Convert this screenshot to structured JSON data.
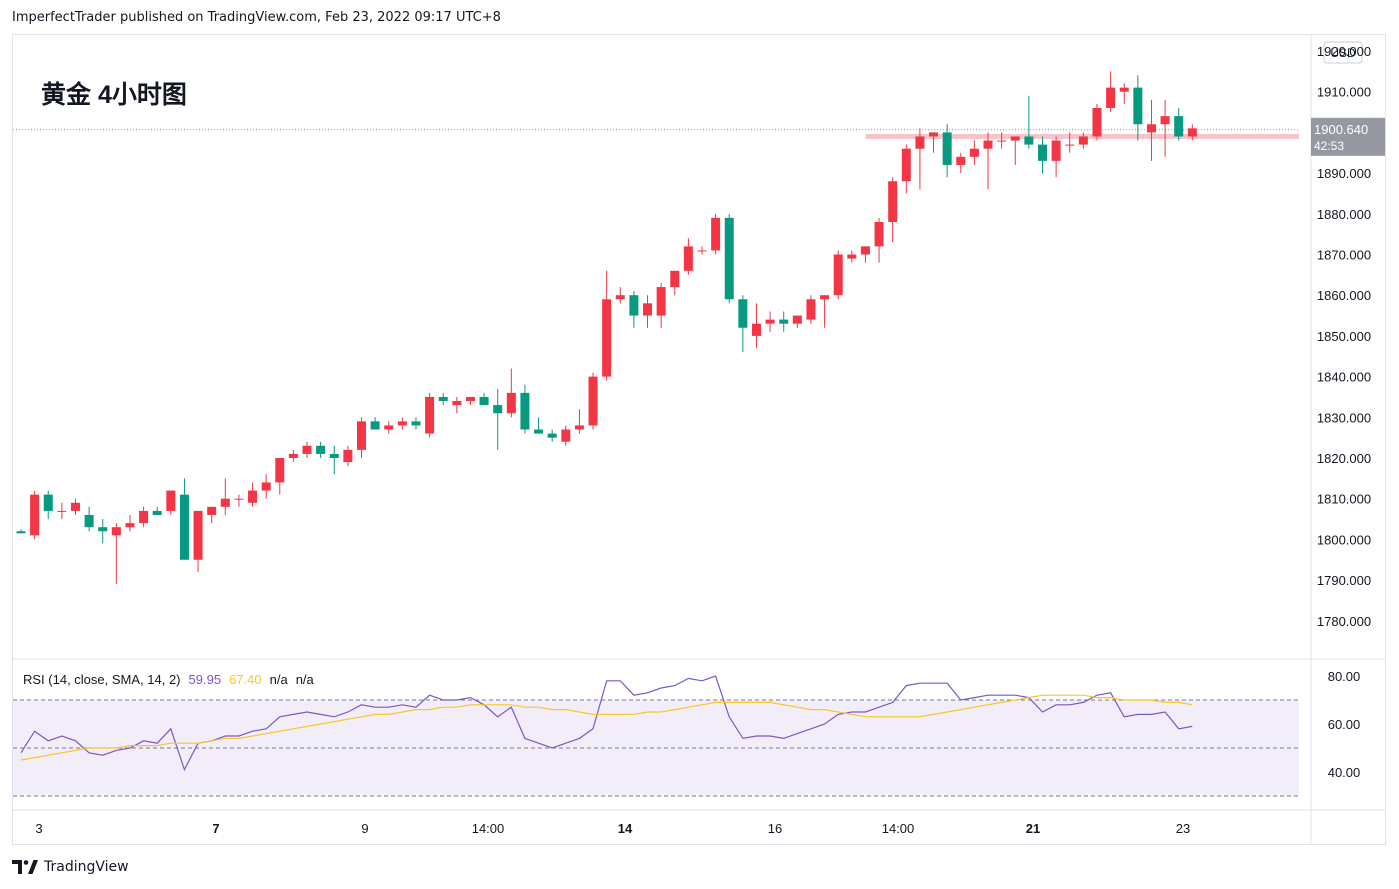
{
  "header": {
    "published": "ImperfectTrader published on TradingView.com, Feb 23, 2022 09:17 UTC+8"
  },
  "footer": {
    "brand": "TradingView"
  },
  "chart_data": [
    {
      "type": "candlestick",
      "title": "黄金 4小时图",
      "currency": "USD",
      "ylim": [
        1775,
        1925
      ],
      "y_ticks": [
        "1920.000",
        "1910.000",
        "1890.000",
        "1880.000",
        "1870.000",
        "1860.000",
        "1850.000",
        "1840.000",
        "1830.000",
        "1820.000",
        "1810.000",
        "1800.000",
        "1790.000",
        "1780.000"
      ],
      "last_price": "1900.640",
      "countdown": "42:53",
      "last_price_value": 1900.64,
      "horizontal_line": 1899,
      "x_ticks": [
        {
          "label": "3",
          "bold": false
        },
        {
          "label": "7",
          "bold": true
        },
        {
          "label": "9",
          "bold": false
        },
        {
          "label": "14:00",
          "bold": false
        },
        {
          "label": "14",
          "bold": true
        },
        {
          "label": "16",
          "bold": false
        },
        {
          "label": "14:00",
          "bold": false
        },
        {
          "label": "21",
          "bold": true
        },
        {
          "label": "23",
          "bold": false
        }
      ],
      "candles": [
        [
          1802,
          1802.5,
          1801.5,
          1801.5
        ],
        [
          1801,
          1812,
          1800,
          1811
        ],
        [
          1811,
          1812,
          1805,
          1807
        ],
        [
          1807,
          1809,
          1805,
          1807
        ],
        [
          1807,
          1810,
          1806,
          1809
        ],
        [
          1806,
          1808,
          1802,
          1803
        ],
        [
          1803,
          1805,
          1799,
          1802
        ],
        [
          1801,
          1804,
          1789,
          1803
        ],
        [
          1803,
          1806,
          1802,
          1804
        ],
        [
          1804,
          1808,
          1803,
          1807
        ],
        [
          1807,
          1808,
          1806,
          1806
        ],
        [
          1807,
          1812,
          1806,
          1812
        ],
        [
          1811,
          1815,
          1795,
          1795
        ],
        [
          1795,
          1807,
          1792,
          1807
        ],
        [
          1806,
          1808,
          1804,
          1808
        ],
        [
          1808,
          1815,
          1806,
          1810
        ],
        [
          1810,
          1811,
          1808,
          1810
        ],
        [
          1809,
          1814,
          1808,
          1812
        ],
        [
          1812,
          1816,
          1810,
          1814
        ],
        [
          1814,
          1820,
          1811,
          1820
        ],
        [
          1820,
          1822,
          1819,
          1821
        ],
        [
          1821,
          1824,
          1820,
          1823
        ],
        [
          1823,
          1824,
          1820,
          1821
        ],
        [
          1821,
          1823,
          1816,
          1820
        ],
        [
          1819,
          1823,
          1818,
          1822
        ],
        [
          1822,
          1830,
          1820,
          1829
        ],
        [
          1829,
          1830,
          1827,
          1827
        ],
        [
          1827,
          1829,
          1826,
          1828
        ],
        [
          1828,
          1830,
          1827,
          1829
        ],
        [
          1829,
          1830,
          1827,
          1828
        ],
        [
          1826,
          1836,
          1825,
          1835
        ],
        [
          1835,
          1836,
          1833,
          1834
        ],
        [
          1833,
          1835,
          1831,
          1834
        ],
        [
          1834,
          1835,
          1833,
          1835
        ],
        [
          1835,
          1836,
          1833,
          1833
        ],
        [
          1833,
          1837,
          1822,
          1831
        ],
        [
          1831,
          1842,
          1830,
          1836
        ],
        [
          1836,
          1838,
          1826,
          1827
        ],
        [
          1827,
          1830,
          1826,
          1826
        ],
        [
          1826,
          1827,
          1824,
          1825
        ],
        [
          1824,
          1828,
          1823,
          1827
        ],
        [
          1827,
          1832,
          1826,
          1828
        ],
        [
          1828,
          1841,
          1827,
          1840
        ],
        [
          1840,
          1866,
          1839,
          1859
        ],
        [
          1859,
          1862,
          1858,
          1860
        ],
        [
          1860,
          1861,
          1852,
          1855
        ],
        [
          1855,
          1860,
          1852,
          1858
        ],
        [
          1855,
          1863,
          1852,
          1862
        ],
        [
          1862,
          1866,
          1860,
          1866
        ],
        [
          1866,
          1874,
          1865,
          1872
        ],
        [
          1871,
          1872,
          1870,
          1871
        ],
        [
          1871,
          1880,
          1870,
          1879
        ],
        [
          1879,
          1880,
          1858,
          1859
        ],
        [
          1859,
          1860,
          1846,
          1852
        ],
        [
          1850,
          1858,
          1847,
          1853
        ],
        [
          1853,
          1856,
          1851,
          1854
        ],
        [
          1854,
          1856,
          1851,
          1853
        ],
        [
          1853,
          1855,
          1852,
          1855
        ],
        [
          1854,
          1860,
          1853,
          1859
        ],
        [
          1859,
          1860,
          1852,
          1860
        ],
        [
          1860,
          1871,
          1859,
          1870
        ],
        [
          1869,
          1871,
          1868,
          1870
        ],
        [
          1870,
          1872,
          1868,
          1872
        ],
        [
          1872,
          1879,
          1868,
          1878
        ],
        [
          1878,
          1889,
          1873,
          1888
        ],
        [
          1888,
          1897,
          1885,
          1896
        ],
        [
          1896,
          1901,
          1886,
          1899
        ],
        [
          1899,
          1900,
          1895,
          1900
        ],
        [
          1900,
          1902,
          1889,
          1892
        ],
        [
          1892,
          1895,
          1890,
          1894
        ],
        [
          1894,
          1898,
          1892,
          1896
        ],
        [
          1896,
          1900,
          1886,
          1898
        ],
        [
          1898,
          1900,
          1896,
          1898
        ],
        [
          1898,
          1899,
          1892,
          1899
        ],
        [
          1899,
          1909,
          1896,
          1897
        ],
        [
          1897,
          1899,
          1890,
          1893
        ],
        [
          1893,
          1899,
          1889,
          1898
        ],
        [
          1897,
          1900,
          1895,
          1897
        ],
        [
          1897,
          1900,
          1896,
          1899
        ],
        [
          1899,
          1907,
          1898,
          1906
        ],
        [
          1906,
          1915,
          1905,
          1911
        ],
        [
          1910,
          1912,
          1907,
          1911
        ],
        [
          1911,
          1914,
          1898,
          1902
        ],
        [
          1900,
          1908,
          1893,
          1902
        ],
        [
          1902,
          1908,
          1894,
          1904
        ],
        [
          1904,
          1906,
          1898,
          1899
        ],
        [
          1899,
          1902,
          1898,
          1901
        ]
      ]
    },
    {
      "type": "line",
      "title": "RSI",
      "legend": {
        "label": "RSI (14, close, SMA, 14, 2)",
        "rsi": "59.95",
        "sma": "67.40",
        "na1": "n/a",
        "na2": "n/a"
      },
      "ylim": [
        25,
        85
      ],
      "y_ticks": [
        "80.00",
        "60.00",
        "40.00"
      ],
      "band": [
        30,
        70
      ],
      "midline": 50,
      "series": [
        {
          "name": "RSI",
          "color": "#7e57c2",
          "values": [
            48,
            57,
            53,
            55,
            53,
            48,
            47,
            49,
            50,
            53,
            52,
            58,
            41,
            52,
            53,
            55,
            55,
            57,
            58,
            63,
            64,
            65,
            64,
            63,
            65,
            68,
            67,
            67,
            68,
            67,
            72,
            70,
            70,
            71,
            68,
            63,
            67,
            54,
            52,
            50,
            52,
            54,
            58,
            78,
            78,
            72,
            73,
            75,
            76,
            79,
            78,
            80,
            63,
            54,
            55,
            55,
            54,
            56,
            58,
            60,
            64,
            65,
            65,
            67,
            69,
            76,
            77,
            77,
            77,
            70,
            71,
            72,
            72,
            72,
            71,
            65,
            68,
            68,
            69,
            72,
            73,
            63,
            64,
            64,
            65,
            58,
            59
          ]
        },
        {
          "name": "SMA",
          "color": "#f7c729",
          "values": [
            45,
            46,
            47,
            48,
            49,
            50,
            50,
            50,
            51,
            51,
            51,
            52,
            52,
            52,
            53,
            54,
            54,
            55,
            56,
            57,
            58,
            59,
            60,
            61,
            62,
            63,
            64,
            64,
            65,
            66,
            66,
            67,
            67,
            68,
            68,
            68,
            68,
            67,
            67,
            66,
            66,
            65,
            64,
            64,
            64,
            64,
            65,
            65,
            66,
            67,
            68,
            69,
            69,
            69,
            69,
            69,
            68,
            67,
            66,
            66,
            65,
            64,
            63,
            63,
            63,
            63,
            63,
            64,
            65,
            66,
            67,
            68,
            69,
            70,
            71,
            72,
            72,
            72,
            72,
            71,
            71,
            70,
            70,
            70,
            69,
            69,
            68
          ]
        }
      ]
    }
  ]
}
